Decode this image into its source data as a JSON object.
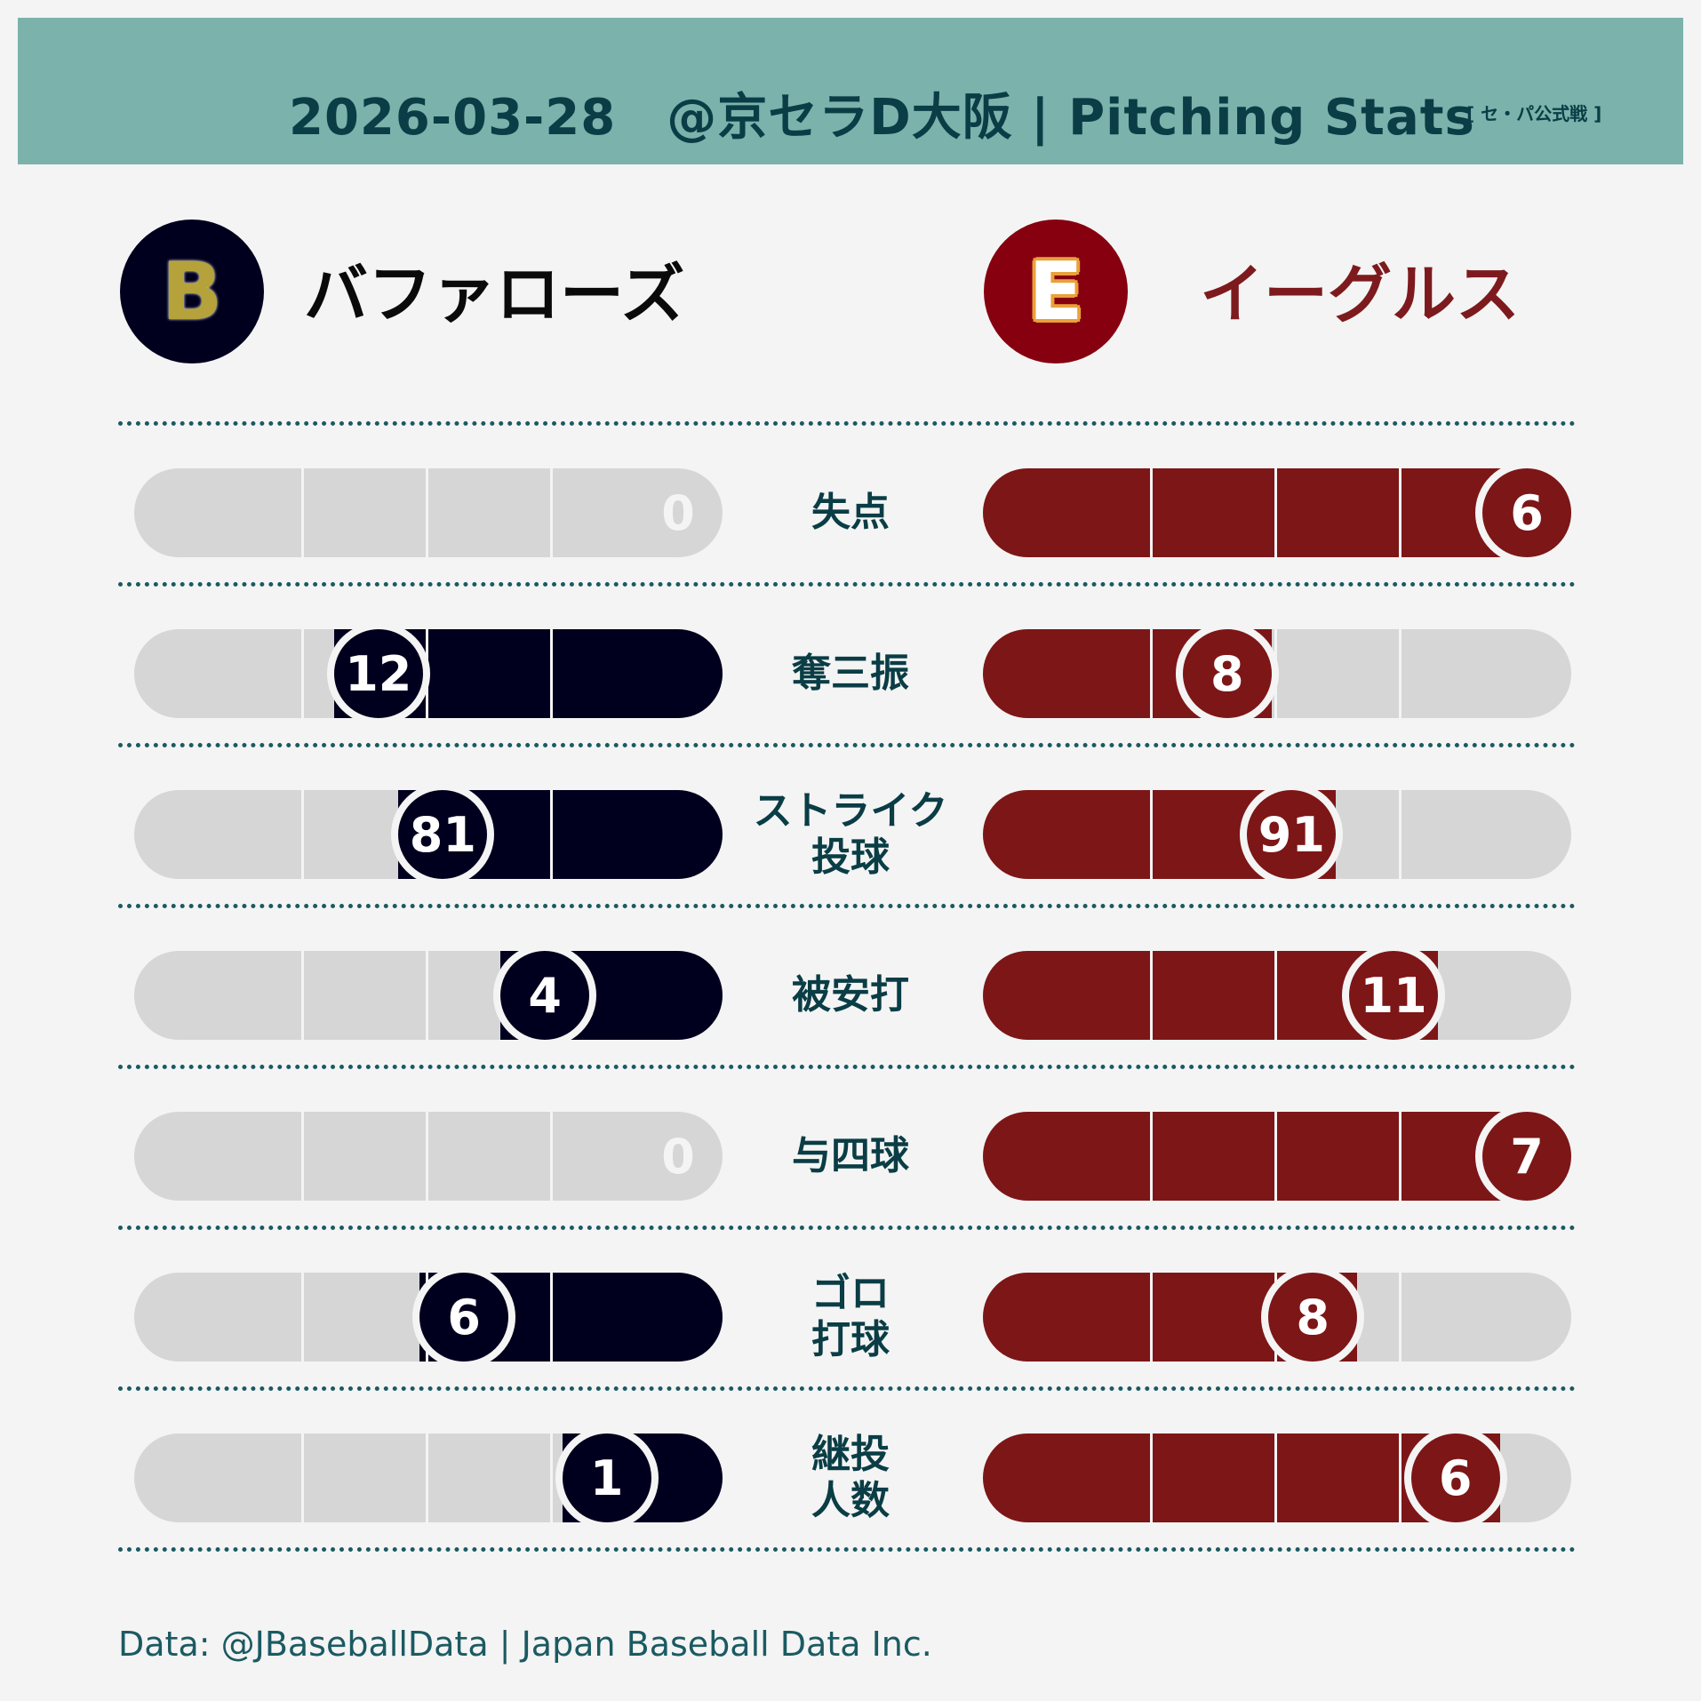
{
  "header": {
    "title": "2026-03-28　@京セラD大阪 | Pitching Stats",
    "tag": "[ セ・パ公式戦 ]"
  },
  "teams": {
    "left": {
      "name": "バファローズ",
      "logo_letter": "B",
      "color": "#00001e",
      "logo_letter_color": "#b5a23a",
      "name_color": "#0a0a0a"
    },
    "right": {
      "name": "イーグルス",
      "logo_letter": "E",
      "color": "#860010",
      "logo_letter_color": "#ffffff",
      "logo_letter_outline": "#e9a13a",
      "name_color": "#7d1a1e"
    }
  },
  "colors": {
    "empty": "#d6d6d6",
    "left_bar": "#00001e",
    "right_bar": "#7d1617",
    "label": "#0a3d45"
  },
  "chart_data": {
    "type": "bar",
    "orientation": "mirrored-horizontal",
    "categories": [
      "失点",
      "奪三振",
      "ストライク\n投球",
      "被安打",
      "与四球",
      "ゴロ\n打球",
      "継投\n人数"
    ],
    "category_lines": [
      [
        "失点"
      ],
      [
        "奪三振"
      ],
      [
        "ストライク",
        "投球"
      ],
      [
        "被安打"
      ],
      [
        "与四球"
      ],
      [
        "ゴロ",
        "打球"
      ],
      [
        "継投",
        "人数"
      ]
    ],
    "series": [
      {
        "name": "バファローズ",
        "values": [
          0,
          12,
          81,
          4,
          0,
          6,
          1
        ]
      },
      {
        "name": "イーグルス",
        "values": [
          6,
          8,
          91,
          11,
          7,
          8,
          6
        ]
      }
    ]
  },
  "footer": {
    "source": "Data: @JBaseballData | Japan Baseball Data Inc."
  }
}
